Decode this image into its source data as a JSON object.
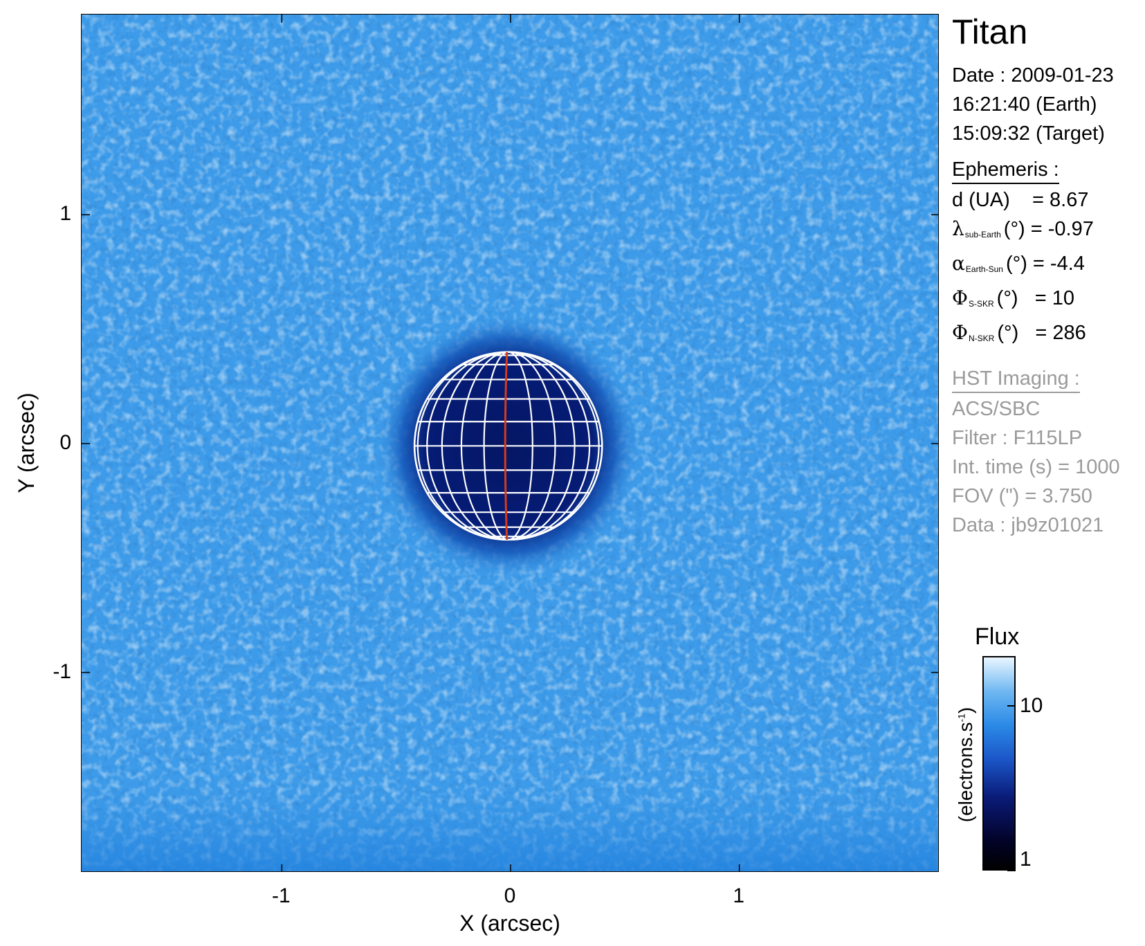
{
  "chart_data": {
    "type": "heatmap",
    "xlabel": "X (arcsec)",
    "ylabel": "Y (arcsec)",
    "xlim": [
      -1.875,
      1.875
    ],
    "ylim": [
      -1.875,
      1.875
    ],
    "x_ticks": [
      -1,
      0,
      1
    ],
    "y_ticks": [
      1,
      0,
      -1
    ],
    "x_tick_labels": [
      "-1",
      "0",
      "1"
    ],
    "y_tick_labels": [
      "1",
      "0",
      "-1"
    ],
    "disk": {
      "center_x": -0.01,
      "center_y": -0.01,
      "radius": 0.41
    },
    "grid_color": "#ffffff",
    "meridian_color": "#d63a1a",
    "colorbar": {
      "title": "Flux",
      "label": "(electrons.s",
      "label_sup": "-1",
      "label_end": ")",
      "scale": "log",
      "range": [
        1,
        20
      ],
      "ticks": [
        1,
        10
      ],
      "tick_labels": [
        "1",
        "10"
      ]
    }
  },
  "panel": {
    "target": "Titan",
    "date_line": "Date : 2009-01-23",
    "earth_time": "16:21:40 (Earth)",
    "target_time": "15:09:32 (Target)",
    "ephemeris_heading": "Ephemeris :",
    "d_label": "d (UA)",
    "d_value": "= 8.67",
    "lambda_symbol": "λ",
    "lambda_sub": "sub-Earth",
    "lambda_rest": "(°) = -0.97",
    "alpha_symbol": "α",
    "alpha_sub": "Earth-Sun",
    "alpha_rest": "(°) = -4.4",
    "phi_s_symbol": "Φ",
    "phi_s_sub": "S-SKR",
    "phi_s_rest": "(°)   = 10",
    "phi_n_symbol": "Φ",
    "phi_n_sub": "N-SKR",
    "phi_n_rest": "(°)   = 286",
    "hst_heading": "HST Imaging :",
    "instrument": "ACS/SBC",
    "filter": "Filter : F115LP",
    "int_time": "Int. time (s) = 1000",
    "fov": "FOV (\") = 3.750",
    "data_id": "Data : jb9z01021"
  },
  "colors": {
    "background_blue": "#3d9be9",
    "disk_dark": "#061a6e",
    "text_gray": "#9a9a9a"
  }
}
